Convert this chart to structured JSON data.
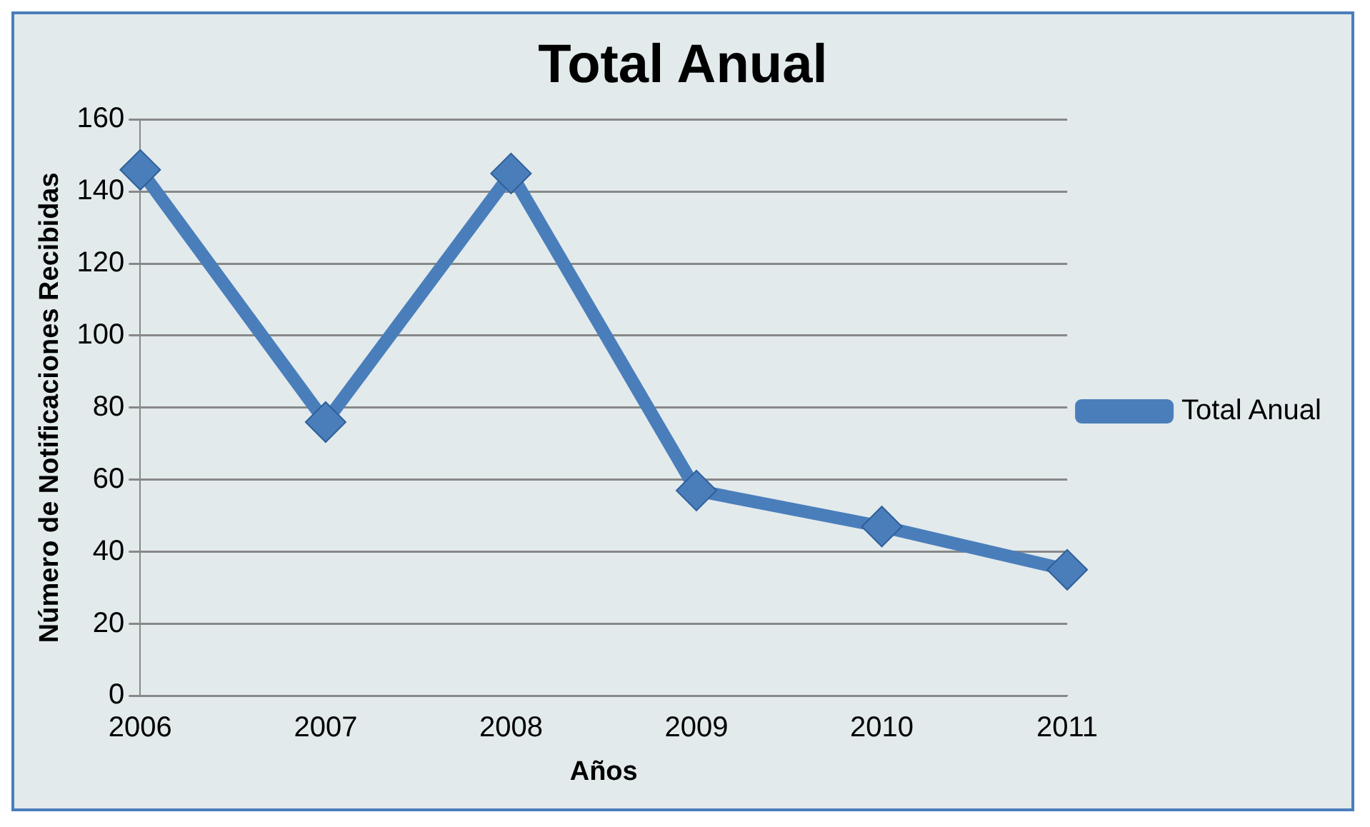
{
  "chart_data": {
    "type": "line",
    "title": "Total Anual",
    "xlabel": "Años",
    "ylabel": "Número de Notificaciones Recibidas",
    "categories": [
      "2006",
      "2007",
      "2008",
      "2009",
      "2010",
      "2011"
    ],
    "series": [
      {
        "name": "Total Anual",
        "color": "#4a7ebb",
        "values": [
          146,
          76,
          145,
          57,
          47,
          35
        ]
      }
    ],
    "ylim": [
      0,
      160
    ],
    "yticks": [
      0,
      20,
      40,
      60,
      80,
      100,
      120,
      140,
      160
    ],
    "grid": "y",
    "legend": "right",
    "marker": "diamond",
    "line_style": "solid"
  }
}
